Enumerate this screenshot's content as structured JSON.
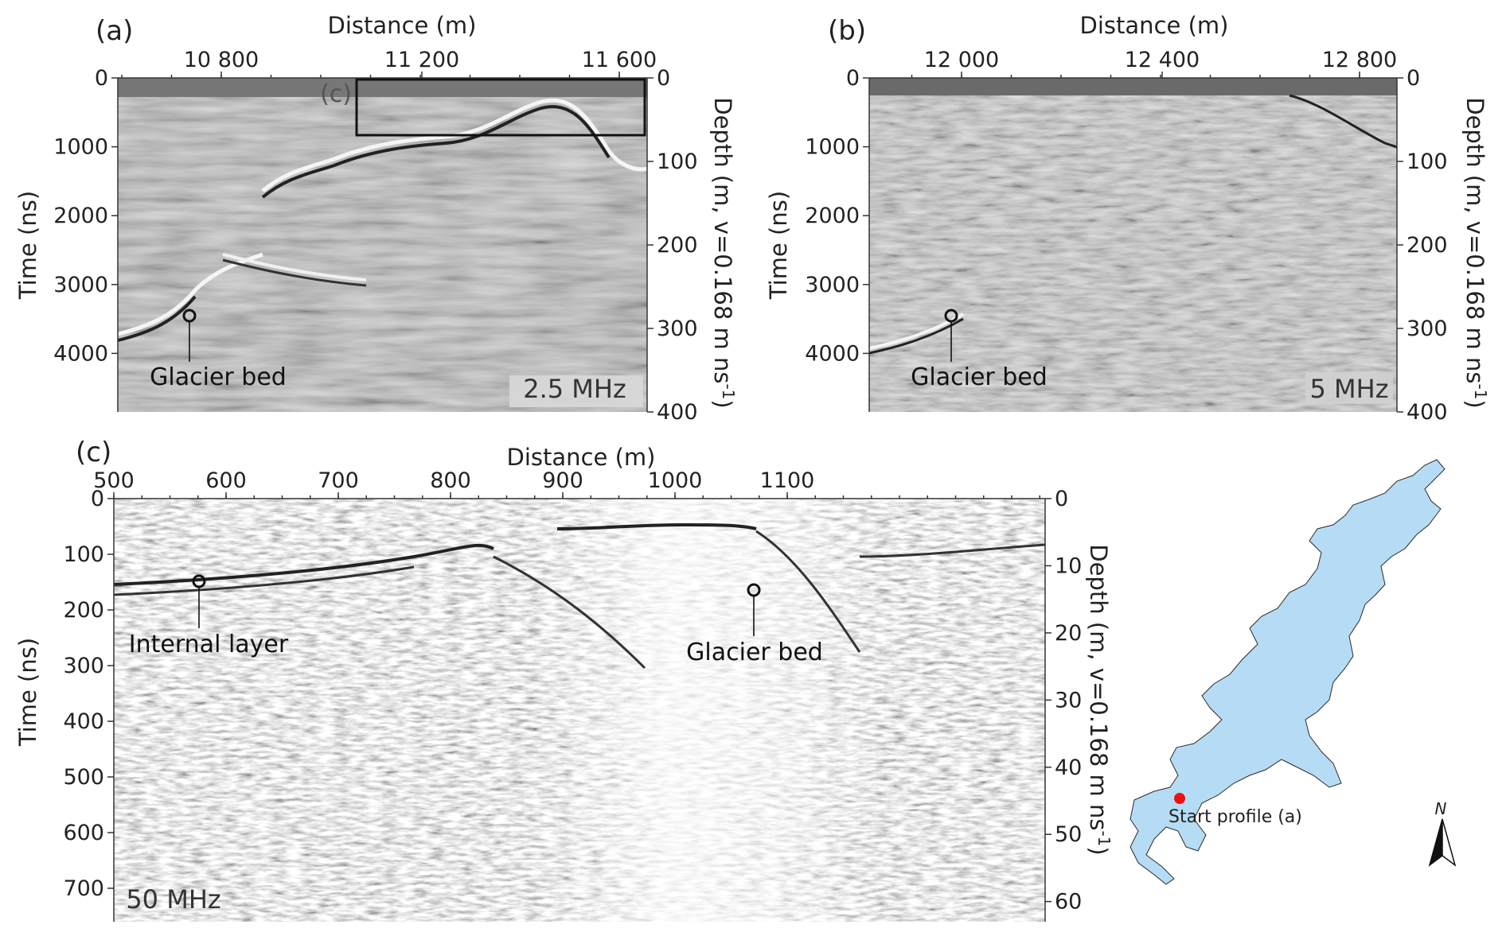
{
  "panels": {
    "a": {
      "letter": "(a)",
      "top_title": "Distance (m)",
      "top_ticks": [
        "10 800",
        "11 200",
        "11 600"
      ],
      "left_title": "Time (ns)",
      "left_ticks": [
        "0",
        "1000",
        "2000",
        "3000",
        "4000"
      ],
      "right_title": "Depth (m, v=0.168 m ns",
      "right_title_sup": "-1",
      "right_title_end": ")",
      "right_ticks": [
        "0",
        "100",
        "200",
        "300",
        "400"
      ],
      "frequency": "2.5 MHz",
      "annotation": "Glacier bed",
      "inset_label": "(c)"
    },
    "b": {
      "letter": "(b)",
      "top_title": "Distance (m)",
      "top_ticks": [
        "12 000",
        "12 400",
        "12 800"
      ],
      "left_title": "Time (ns)",
      "left_ticks": [
        "0",
        "1000",
        "2000",
        "3000",
        "4000"
      ],
      "right_title": "Depth (m, v=0.168 m ns",
      "right_title_sup": "-1",
      "right_title_end": ")",
      "right_ticks": [
        "0",
        "100",
        "200",
        "300",
        "400"
      ],
      "frequency": "5 MHz",
      "annotation": "Glacier bed"
    },
    "c": {
      "letter": "(c)",
      "top_title": "Distance (m)",
      "top_ticks": [
        "500",
        "600",
        "700",
        "800",
        "900",
        "1000",
        "1100"
      ],
      "left_title": "Time (ns)",
      "left_ticks": [
        "0",
        "100",
        "200",
        "300",
        "400",
        "500",
        "600",
        "700"
      ],
      "right_title": "Depth (m, v=0.168 m ns",
      "right_title_sup": "-1",
      "right_title_end": ")",
      "right_ticks": [
        "0",
        "10",
        "20",
        "30",
        "40",
        "50",
        "60"
      ],
      "frequency": "50 MHz",
      "annotation_left": "Internal layer",
      "annotation_right": "Glacier bed"
    }
  },
  "map": {
    "label": "Start profile (a)",
    "north": "N",
    "fill_color": "#b6dcf5",
    "marker_color": "#ee1111"
  }
}
